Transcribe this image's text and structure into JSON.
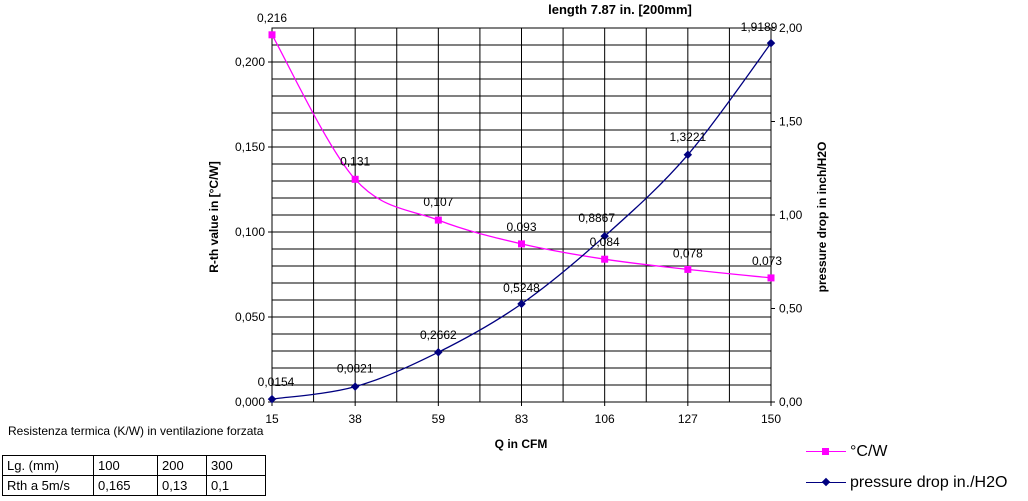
{
  "chart_data": {
    "type": "line",
    "title": "length 7.87 in. [200mm]",
    "xlabel": "Q in CFM",
    "ylabel_left": "R-th value in [°C/W]",
    "ylabel_right": "pressure drop in inch/H2O",
    "categories": [
      "15",
      "38",
      "59",
      "83",
      "106",
      "127",
      "150"
    ],
    "y_left_ticks": [
      "0,000",
      "0,050",
      "0,100",
      "0,150",
      "0,200"
    ],
    "y_left_range": [
      0,
      0.22
    ],
    "y_right_ticks": [
      "0,00",
      "0,50",
      "1,00",
      "1,50",
      "2,00"
    ],
    "y_right_range": [
      0,
      2.0
    ],
    "grid": true,
    "legend_position": "bottom-right",
    "series": [
      {
        "name": "°C/W",
        "axis": "left",
        "color": "#ff00ff",
        "marker": "square",
        "values": [
          0.216,
          0.131,
          0.107,
          0.093,
          0.084,
          0.078,
          0.073
        ],
        "labels": [
          "0,216",
          "0,131",
          "0,107",
          "0,093",
          "0,084",
          "0,078",
          "0,073"
        ]
      },
      {
        "name": "pressure drop in./H2O",
        "axis": "right",
        "color": "#000080",
        "marker": "diamond",
        "values": [
          0.0154,
          0.0821,
          0.2662,
          0.5248,
          0.8867,
          1.3221,
          1.9189
        ],
        "labels": [
          "0,0154",
          "0,0821",
          "0,2662",
          "0,5248",
          "0,8867",
          "1,3221",
          "1,9189"
        ]
      }
    ]
  },
  "caption": "Resistenza termica (K/W) in ventilazione forzata",
  "table": {
    "rows": [
      [
        "Lg. (mm)",
        "100",
        "200",
        "300"
      ],
      [
        "Rth a 5m/s",
        "0,165",
        "0,13",
        "0,1"
      ]
    ]
  },
  "legend": {
    "items": [
      "°C/W",
      "pressure drop in./H2O"
    ]
  }
}
